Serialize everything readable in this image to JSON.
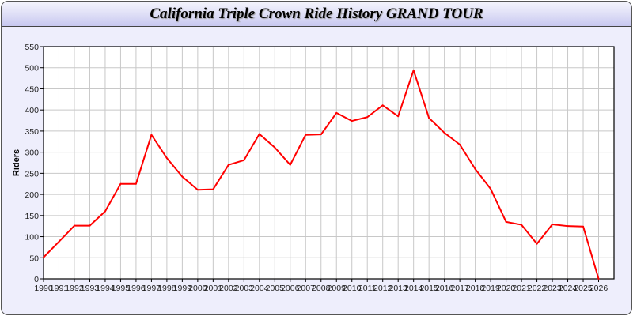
{
  "chart_data": {
    "type": "line",
    "title": "California Triple Crown Ride History GRAND TOUR",
    "xlabel": "",
    "ylabel": "Riders",
    "ylim": [
      0,
      550
    ],
    "xlim": [
      1990,
      2027
    ],
    "yticks": [
      0,
      50,
      100,
      150,
      200,
      250,
      300,
      350,
      400,
      450,
      500,
      550
    ],
    "grid": true,
    "line_color": "#ff0000",
    "x": [
      1990,
      1991,
      1992,
      1993,
      1994,
      1995,
      1996,
      1997,
      1998,
      1999,
      2000,
      2001,
      2002,
      2003,
      2004,
      2005,
      2006,
      2007,
      2008,
      2009,
      2010,
      2011,
      2012,
      2013,
      2014,
      2015,
      2016,
      2017,
      2018,
      2019,
      2020,
      2021,
      2022,
      2023,
      2024,
      2025,
      2026
    ],
    "values": [
      51,
      88,
      126,
      126,
      160,
      225,
      225,
      341,
      286,
      242,
      211,
      212,
      270,
      281,
      343,
      311,
      270,
      341,
      342,
      393,
      374,
      383,
      411,
      385,
      494,
      381,
      346,
      318,
      260,
      213,
      135,
      128,
      83,
      129,
      125,
      124,
      0
    ]
  }
}
